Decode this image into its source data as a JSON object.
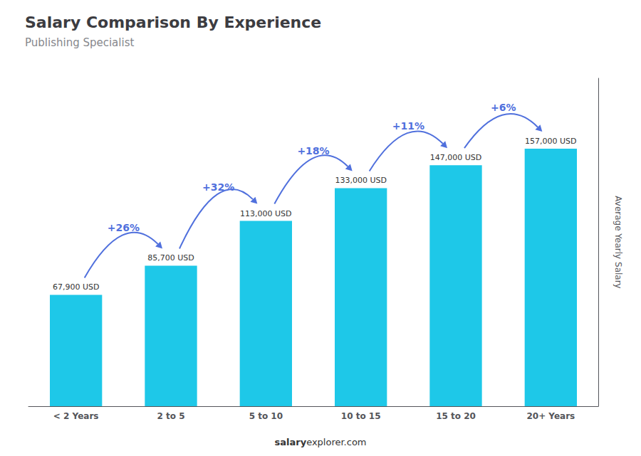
{
  "chart_data": {
    "type": "bar",
    "title": "Salary Comparison By Experience",
    "subtitle": "Publishing Specialist",
    "categories": [
      "< 2 Years",
      "2 to 5",
      "5 to 10",
      "10 to 15",
      "15 to 20",
      "20+ Years"
    ],
    "values": [
      67900,
      85700,
      113000,
      133000,
      147000,
      157000
    ],
    "value_labels": [
      "67,900 USD",
      "85,700 USD",
      "113,000 USD",
      "133,000 USD",
      "147,000 USD",
      "157,000 USD"
    ],
    "color": "#1EC8E8",
    "ylabel": "Average Yearly Salary",
    "annotations": [
      "+26%",
      "+32%",
      "+18%",
      "+11%",
      "+6%"
    ],
    "watermark": [
      "salary",
      "explorer.com"
    ],
    "ylim": [
      0,
      200000
    ],
    "grid": false,
    "data_labels": true,
    "tick_labels": "x"
  }
}
